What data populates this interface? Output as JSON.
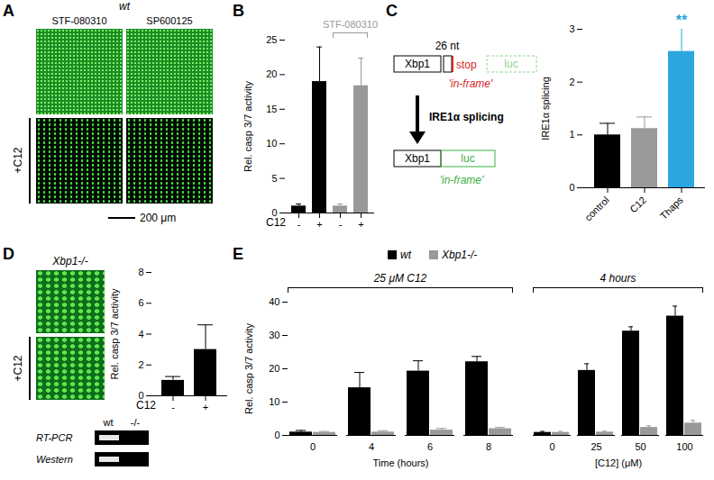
{
  "chart_data": [
    {
      "panel": "B",
      "type": "bar",
      "ylabel": "Rel. casp 3/7 activity",
      "xlabel": "C12",
      "categories": [
        "-",
        "+",
        "-",
        "+"
      ],
      "values": [
        1,
        19,
        1,
        18.4
      ],
      "errors": [
        0.3,
        5,
        0.3,
        4
      ],
      "colors": [
        "#000000",
        "#000000",
        "#999999",
        "#999999"
      ],
      "ylim": [
        0,
        25
      ],
      "yticks": [
        0,
        5,
        10,
        15,
        20,
        25
      ],
      "bracket_label": "STF-080310"
    },
    {
      "panel": "C",
      "type": "bar",
      "ylabel": "IRE1α splicing",
      "categories": [
        "control",
        "C12",
        "Thaps"
      ],
      "values": [
        1,
        1.12,
        2.58
      ],
      "errors": [
        0.22,
        0.22,
        0.45
      ],
      "colors": [
        "#000000",
        "#999999",
        "#2ba6de"
      ],
      "significance": [
        null,
        null,
        "**"
      ],
      "ylim": [
        0,
        3
      ],
      "yticks": [
        0,
        1,
        2,
        3
      ]
    },
    {
      "panel": "D",
      "type": "bar",
      "ylabel": "Rel. casp 3/7 activity",
      "xlabel": "C12",
      "categories": [
        "-",
        "+"
      ],
      "values": [
        1,
        3
      ],
      "errors": [
        0.25,
        1.6
      ],
      "colors": [
        "#000000",
        "#000000"
      ],
      "ylim": [
        0,
        8
      ],
      "yticks": [
        0,
        2,
        4,
        6,
        8
      ]
    },
    {
      "panel": "E",
      "type": "bar",
      "ylabel": "Rel. casp 3/7 activity",
      "ylim": [
        0,
        40
      ],
      "yticks": [
        0,
        10,
        20,
        30,
        40
      ],
      "legend": "top",
      "groups": [
        {
          "title": "25 μM C12",
          "xlabel": "Time (hours)",
          "categories": [
            "0",
            "4",
            "6",
            "8"
          ],
          "series": [
            {
              "name": "wt",
              "color": "#000000",
              "values": [
                1,
                14.3,
                19.3,
                22.1
              ],
              "errors": [
                0.5,
                4.6,
                3.1,
                1.6
              ]
            },
            {
              "name": "Xbp1-/-",
              "color": "#999999",
              "values": [
                0.9,
                1,
                1.6,
                2
              ],
              "errors": [
                0.3,
                0.4,
                0.5,
                0.4
              ]
            }
          ]
        },
        {
          "title": "4 hours",
          "xlabel": "[C12] (μM)",
          "categories": [
            "0",
            "25",
            "50",
            "100"
          ],
          "series": [
            {
              "name": "wt",
              "color": "#000000",
              "values": [
                0.9,
                19.5,
                31.3,
                35.8
              ],
              "errors": [
                0.3,
                2,
                1.3,
                3
              ]
            },
            {
              "name": "Xbp1-/-",
              "color": "#999999",
              "values": [
                0.9,
                1,
                2.4,
                3.7
              ],
              "errors": [
                0.3,
                0.3,
                0.5,
                0.8
              ]
            }
          ]
        }
      ]
    }
  ],
  "panel_a": {
    "panel": "A",
    "genotype": "wt",
    "columns": [
      "STF-080310",
      "SP600125"
    ],
    "row_label": "+C12",
    "scale_bar": "200 μm"
  },
  "panel_c_diagram": {
    "construct": [
      "Xbp1",
      "26 nt",
      "stop",
      "luc",
      "'in-frame'"
    ],
    "arrow": "IRE1α splicing",
    "spliced": [
      "Xbp1",
      "luc",
      "'in-frame'"
    ]
  },
  "panel_d_images": {
    "genotype": "Xbp1-/-",
    "row_label": "+C12",
    "blots": [
      "RT-PCR",
      "Western"
    ],
    "lanes": [
      "wt",
      "-/-"
    ]
  }
}
